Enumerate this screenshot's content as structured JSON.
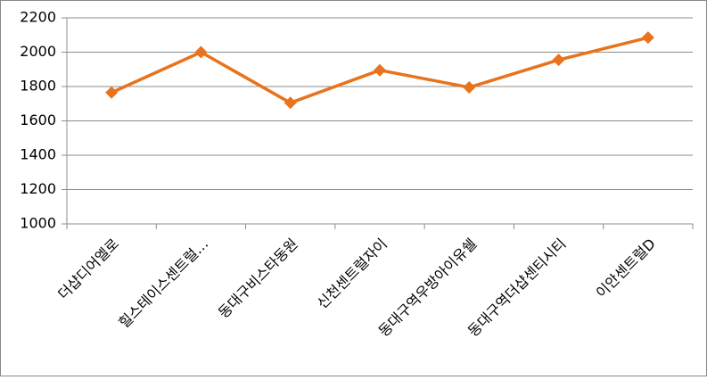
{
  "chart_data": {
    "type": "line",
    "categories": [
      "더샵디어엘로",
      "힐스테이스센트럴…",
      "동대구비스타동원",
      "신천센트럴자이",
      "동대구역우방아이유쉘",
      "동대구역더샵센티시티",
      "이안센트럴D"
    ],
    "series": [
      {
        "name": null,
        "color": "#e8731c",
        "values": [
          1765,
          2000,
          1705,
          1895,
          1795,
          1955,
          2085
        ]
      }
    ],
    "ylim": [
      1000,
      2200
    ],
    "yticks": [
      1000,
      1200,
      1400,
      1600,
      1800,
      2000,
      2200
    ],
    "grid": true
  }
}
